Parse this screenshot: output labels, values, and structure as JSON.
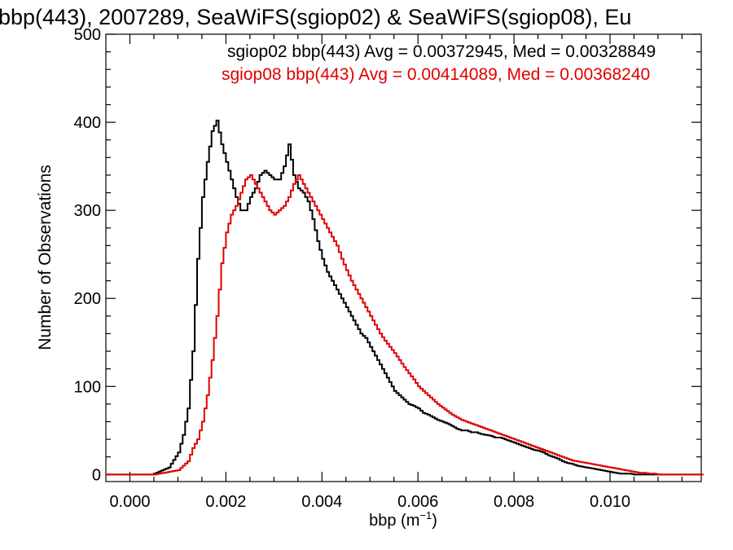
{
  "chart_data": {
    "type": "histogram",
    "title": "bbp(443), 2007289, SeaWiFS(sgiop02) & SeaWiFS(sgiop08), Eu",
    "xlabel": "bbp (m",
    "xlabel_sup": "−1",
    "xlabel_close": ")",
    "ylabel": "Number of Observations",
    "xlim": [
      -0.0005,
      0.0119
    ],
    "ylim": [
      -8,
      500
    ],
    "x_ticks": [
      {
        "value": 0.0,
        "label": "0.000"
      },
      {
        "value": 0.002,
        "label": "0.002"
      },
      {
        "value": 0.004,
        "label": "0.004"
      },
      {
        "value": 0.006,
        "label": "0.006"
      },
      {
        "value": 0.008,
        "label": "0.008"
      },
      {
        "value": 0.01,
        "label": "0.010"
      }
    ],
    "y_ticks": [
      {
        "value": 0,
        "label": "0"
      },
      {
        "value": 100,
        "label": "100"
      },
      {
        "value": 200,
        "label": "200"
      },
      {
        "value": 300,
        "label": "300"
      },
      {
        "value": 400,
        "label": "400"
      },
      {
        "value": 500,
        "label": "500"
      }
    ],
    "bin_width": 5e-05,
    "series": [
      {
        "name": "sgiop02",
        "color": "#000000",
        "legend_text": "sgiop02 bbp(443) Avg = 0.00372945, Med = 0.00328849",
        "points": [
          [
            0.0005,
            1
          ],
          [
            0.0008,
            8
          ],
          [
            0.001,
            25
          ],
          [
            0.0011,
            45
          ],
          [
            0.0012,
            75
          ],
          [
            0.0013,
            140
          ],
          [
            0.0014,
            245
          ],
          [
            0.0015,
            315
          ],
          [
            0.0016,
            355
          ],
          [
            0.0017,
            390
          ],
          [
            0.0018,
            402
          ],
          [
            0.0019,
            375
          ],
          [
            0.002,
            355
          ],
          [
            0.0021,
            335
          ],
          [
            0.0022,
            315
          ],
          [
            0.0023,
            300
          ],
          [
            0.0024,
            300
          ],
          [
            0.0025,
            315
          ],
          [
            0.0026,
            325
          ],
          [
            0.0027,
            340
          ],
          [
            0.0028,
            345
          ],
          [
            0.0029,
            340
          ],
          [
            0.003,
            335
          ],
          [
            0.0031,
            335
          ],
          [
            0.0032,
            350
          ],
          [
            0.0033,
            375
          ],
          [
            0.0034,
            340
          ],
          [
            0.0035,
            325
          ],
          [
            0.0036,
            320
          ],
          [
            0.0037,
            310
          ],
          [
            0.0038,
            290
          ],
          [
            0.0039,
            265
          ],
          [
            0.004,
            245
          ],
          [
            0.0041,
            230
          ],
          [
            0.0042,
            220
          ],
          [
            0.0043,
            210
          ],
          [
            0.0044,
            200
          ],
          [
            0.0045,
            190
          ],
          [
            0.0046,
            180
          ],
          [
            0.0047,
            170
          ],
          [
            0.0048,
            160
          ],
          [
            0.0049,
            155
          ],
          [
            0.005,
            145
          ],
          [
            0.0051,
            135
          ],
          [
            0.0052,
            125
          ],
          [
            0.0053,
            115
          ],
          [
            0.0054,
            105
          ],
          [
            0.0055,
            95
          ],
          [
            0.0056,
            90
          ],
          [
            0.0057,
            85
          ],
          [
            0.0058,
            80
          ],
          [
            0.0059,
            78
          ],
          [
            0.006,
            75
          ],
          [
            0.0061,
            70
          ],
          [
            0.0062,
            68
          ],
          [
            0.0063,
            65
          ],
          [
            0.0064,
            62
          ],
          [
            0.0065,
            60
          ],
          [
            0.0066,
            58
          ],
          [
            0.0067,
            55
          ],
          [
            0.0068,
            52
          ],
          [
            0.0069,
            50
          ],
          [
            0.007,
            50
          ],
          [
            0.0071,
            48
          ],
          [
            0.0072,
            48
          ],
          [
            0.0073,
            46
          ],
          [
            0.0074,
            45
          ],
          [
            0.0075,
            44
          ],
          [
            0.0076,
            42
          ],
          [
            0.0077,
            42
          ],
          [
            0.0078,
            40
          ],
          [
            0.0079,
            38
          ],
          [
            0.008,
            36
          ],
          [
            0.0081,
            34
          ],
          [
            0.0082,
            32
          ],
          [
            0.0083,
            30
          ],
          [
            0.0084,
            28
          ],
          [
            0.0085,
            27
          ],
          [
            0.0086,
            25
          ],
          [
            0.0087,
            22
          ],
          [
            0.0088,
            20
          ],
          [
            0.0089,
            18
          ],
          [
            0.009,
            15
          ],
          [
            0.0091,
            13
          ],
          [
            0.0092,
            12
          ],
          [
            0.0093,
            10
          ],
          [
            0.0094,
            9
          ],
          [
            0.0095,
            8
          ],
          [
            0.0096,
            7
          ],
          [
            0.0097,
            6
          ],
          [
            0.0098,
            5
          ],
          [
            0.0099,
            4
          ],
          [
            0.01,
            3
          ],
          [
            0.0101,
            2
          ],
          [
            0.0102,
            1
          ],
          [
            0.0103,
            1
          ],
          [
            0.0104,
            1
          ],
          [
            0.0105,
            0
          ],
          [
            0.011,
            0
          ]
        ]
      },
      {
        "name": "sgiop08",
        "color": "#e00000",
        "legend_text": "sgiop08 bbp(443) Avg = 0.00414089, Med = 0.00368240",
        "points": [
          [
            0.0005,
            0
          ],
          [
            0.001,
            5
          ],
          [
            0.0012,
            15
          ],
          [
            0.0013,
            30
          ],
          [
            0.0014,
            40
          ],
          [
            0.0015,
            60
          ],
          [
            0.0016,
            90
          ],
          [
            0.0017,
            130
          ],
          [
            0.0018,
            180
          ],
          [
            0.0019,
            240
          ],
          [
            0.002,
            275
          ],
          [
            0.0021,
            295
          ],
          [
            0.0022,
            305
          ],
          [
            0.0023,
            320
          ],
          [
            0.0024,
            335
          ],
          [
            0.0025,
            340
          ],
          [
            0.0026,
            330
          ],
          [
            0.0027,
            320
          ],
          [
            0.0028,
            310
          ],
          [
            0.0029,
            300
          ],
          [
            0.003,
            295
          ],
          [
            0.0031,
            300
          ],
          [
            0.0032,
            305
          ],
          [
            0.0033,
            315
          ],
          [
            0.0034,
            330
          ],
          [
            0.0035,
            340
          ],
          [
            0.0036,
            330
          ],
          [
            0.0037,
            320
          ],
          [
            0.0038,
            310
          ],
          [
            0.0039,
            300
          ],
          [
            0.004,
            290
          ],
          [
            0.0041,
            280
          ],
          [
            0.0042,
            270
          ],
          [
            0.0043,
            260
          ],
          [
            0.0044,
            245
          ],
          [
            0.0045,
            232
          ],
          [
            0.0046,
            220
          ],
          [
            0.0047,
            210
          ],
          [
            0.0048,
            200
          ],
          [
            0.0049,
            190
          ],
          [
            0.005,
            180
          ],
          [
            0.0051,
            170
          ],
          [
            0.0052,
            160
          ],
          [
            0.0053,
            152
          ],
          [
            0.0054,
            145
          ],
          [
            0.0055,
            138
          ],
          [
            0.0056,
            130
          ],
          [
            0.0057,
            122
          ],
          [
            0.0058,
            115
          ],
          [
            0.0059,
            108
          ],
          [
            0.006,
            100
          ],
          [
            0.0061,
            95
          ],
          [
            0.0062,
            90
          ],
          [
            0.0063,
            85
          ],
          [
            0.0064,
            80
          ],
          [
            0.0065,
            76
          ],
          [
            0.0066,
            72
          ],
          [
            0.0067,
            68
          ],
          [
            0.0068,
            65
          ],
          [
            0.0069,
            62
          ],
          [
            0.007,
            60
          ],
          [
            0.0071,
            58
          ],
          [
            0.0072,
            56
          ],
          [
            0.0073,
            54
          ],
          [
            0.0074,
            52
          ],
          [
            0.0075,
            50
          ],
          [
            0.0076,
            48
          ],
          [
            0.0077,
            46
          ],
          [
            0.0078,
            44
          ],
          [
            0.0079,
            42
          ],
          [
            0.008,
            40
          ],
          [
            0.0081,
            38
          ],
          [
            0.0082,
            36
          ],
          [
            0.0083,
            34
          ],
          [
            0.0084,
            32
          ],
          [
            0.0085,
            30
          ],
          [
            0.0086,
            28
          ],
          [
            0.0087,
            26
          ],
          [
            0.0088,
            24
          ],
          [
            0.0089,
            22
          ],
          [
            0.009,
            20
          ],
          [
            0.0091,
            18
          ],
          [
            0.0092,
            16
          ],
          [
            0.0093,
            15
          ],
          [
            0.0094,
            14
          ],
          [
            0.0095,
            13
          ],
          [
            0.0096,
            12
          ],
          [
            0.0097,
            11
          ],
          [
            0.0098,
            10
          ],
          [
            0.0099,
            9
          ],
          [
            0.01,
            8
          ],
          [
            0.0101,
            7
          ],
          [
            0.0102,
            6
          ],
          [
            0.0103,
            5
          ],
          [
            0.0104,
            4
          ],
          [
            0.0105,
            3
          ],
          [
            0.0106,
            2
          ],
          [
            0.0107,
            2
          ],
          [
            0.0108,
            1
          ],
          [
            0.0109,
            1
          ],
          [
            0.011,
            0
          ],
          [
            0.0119,
            0
          ]
        ]
      }
    ]
  }
}
